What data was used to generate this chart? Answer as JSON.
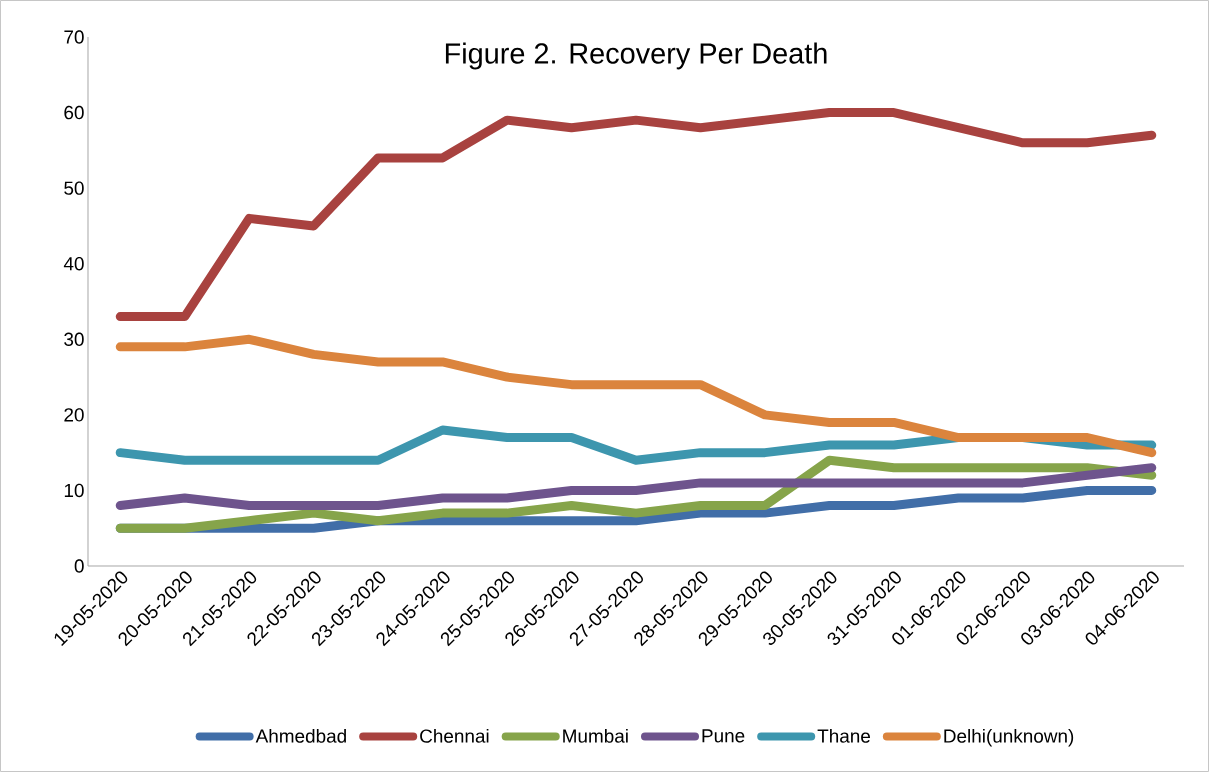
{
  "chart_data": {
    "type": "line",
    "title": "Figure 2. Recovery Per Death",
    "categories": [
      "19-05-2020",
      "20-05-2020",
      "21-05-2020",
      "22-05-2020",
      "23-05-2020",
      "24-05-2020",
      "25-05-2020",
      "26-05-2020",
      "27-05-2020",
      "28-05-2020",
      "29-05-2020",
      "30-05-2020",
      "31-05-2020",
      "01-06-2020",
      "02-06-2020",
      "03-06-2020",
      "04-06-2020"
    ],
    "series": [
      {
        "name": "Ahmedbad",
        "color": "#416ea8",
        "values": [
          5,
          5,
          5,
          5,
          6,
          6,
          6,
          6,
          6,
          7,
          7,
          8,
          8,
          9,
          9,
          10,
          10
        ]
      },
      {
        "name": "Chennai",
        "color": "#a8423f",
        "values": [
          33,
          33,
          46,
          45,
          54,
          54,
          59,
          58,
          59,
          58,
          59,
          60,
          60,
          58,
          56,
          56,
          57
        ]
      },
      {
        "name": "Mumbai",
        "color": "#86a44a",
        "values": [
          5,
          5,
          6,
          7,
          6,
          7,
          7,
          8,
          7,
          8,
          8,
          14,
          13,
          13,
          13,
          13,
          12
        ]
      },
      {
        "name": "Pune",
        "color": "#6e548d",
        "values": [
          8,
          9,
          8,
          8,
          8,
          9,
          9,
          10,
          10,
          11,
          11,
          11,
          11,
          11,
          11,
          12,
          13
        ]
      },
      {
        "name": "Thane",
        "color": "#3d96ae",
        "values": [
          15,
          14,
          14,
          14,
          14,
          18,
          17,
          17,
          14,
          15,
          15,
          16,
          16,
          17,
          17,
          16,
          16
        ]
      },
      {
        "name": "Delhi(unknown)",
        "color": "#db843d",
        "values": [
          29,
          29,
          30,
          28,
          27,
          27,
          25,
          24,
          24,
          24,
          20,
          19,
          19,
          17,
          17,
          17,
          15
        ]
      }
    ],
    "ylim": [
      0,
      70
    ],
    "yticks": [
      0,
      10,
      20,
      30,
      40,
      50,
      60,
      70
    ],
    "legend": "bottom",
    "grid": false
  }
}
